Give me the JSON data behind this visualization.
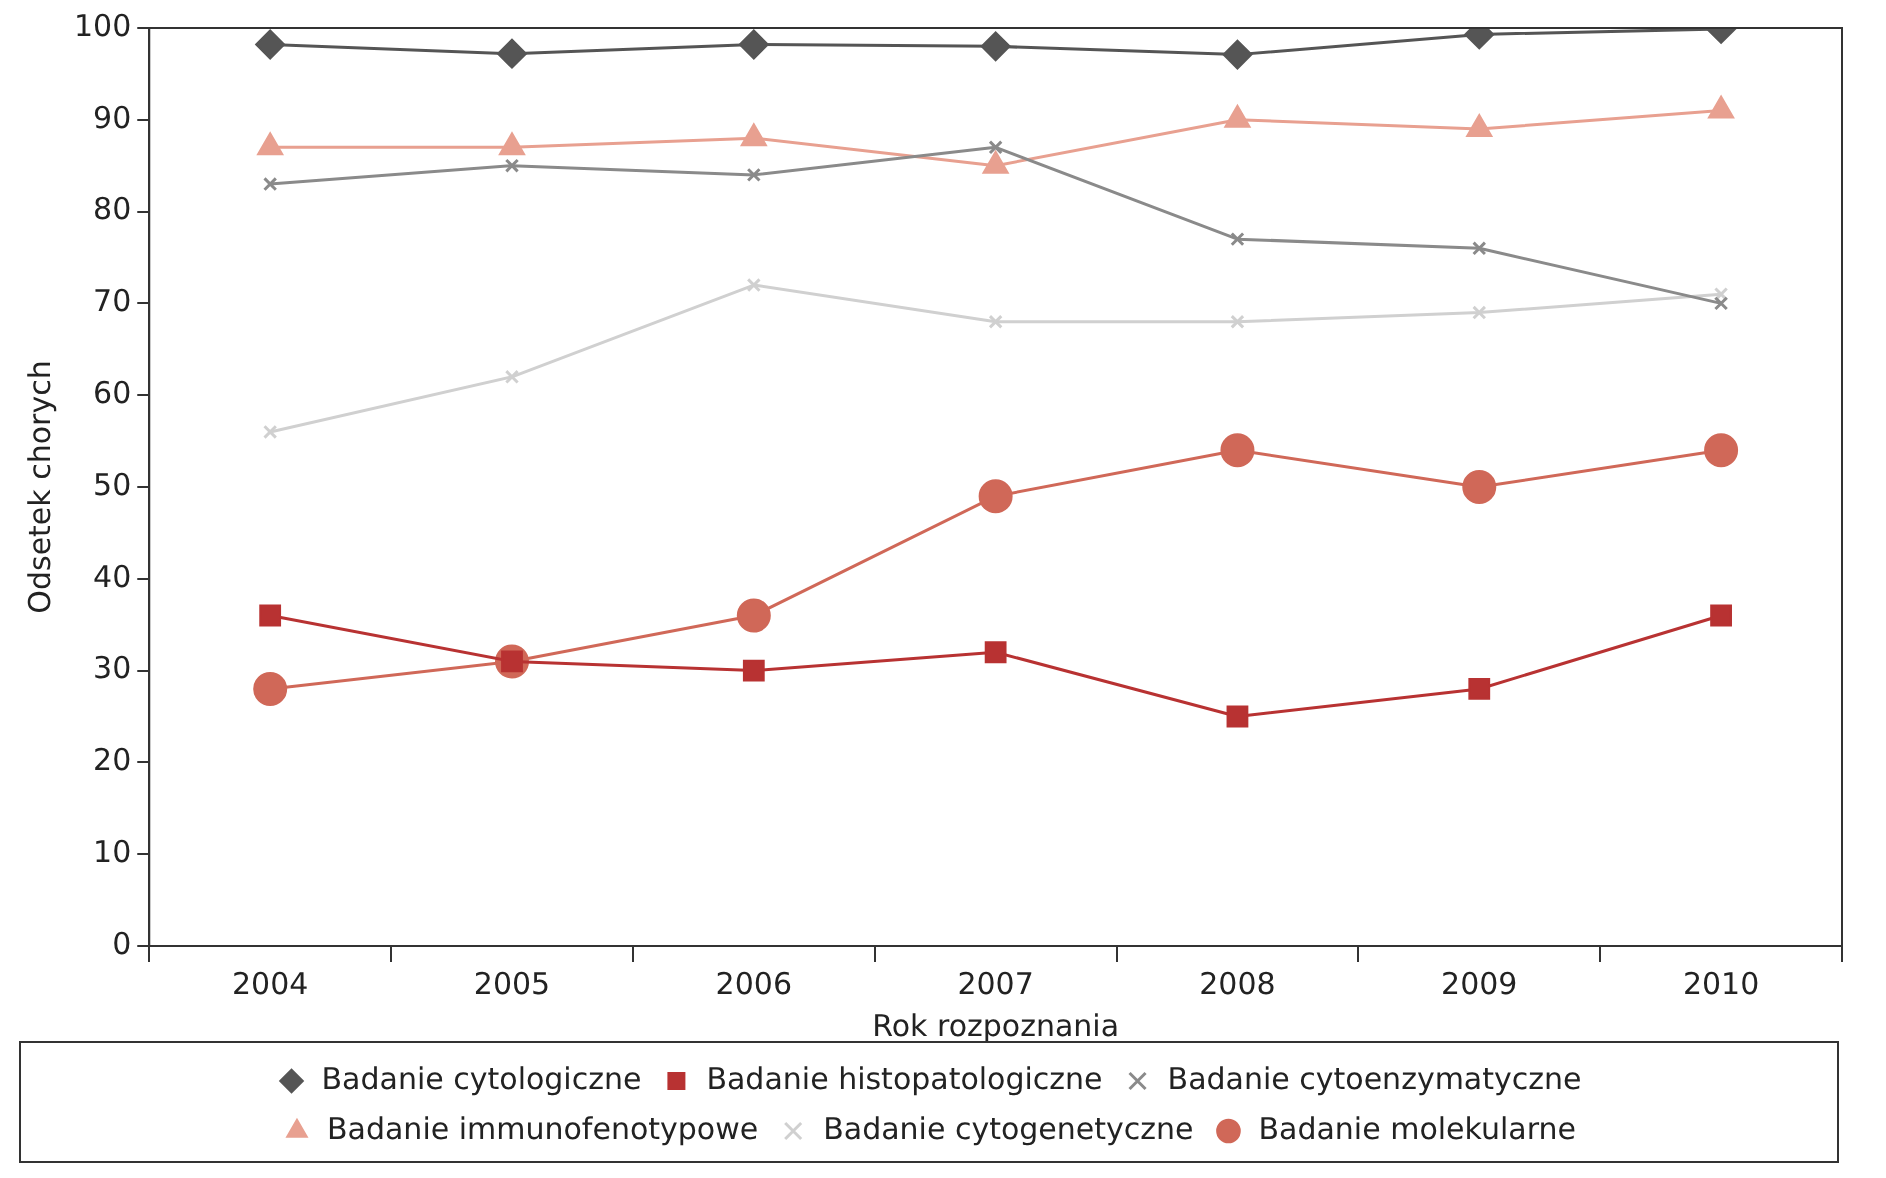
{
  "chart_data": {
    "type": "line",
    "xlabel": "Rok rozpoznania",
    "ylabel": "Odsetek chorych",
    "categories": [
      "2004",
      "2005",
      "2006",
      "2007",
      "2008",
      "2009",
      "2010"
    ],
    "series": [
      {
        "name": "Badanie cytologiczne",
        "color": "#555555",
        "marker": "diamond",
        "values": [
          98.2,
          97.2,
          98.2,
          98.0,
          97.1,
          99.3,
          99.9
        ]
      },
      {
        "name": "Badanie histopatologiczne",
        "color": "#b83232",
        "marker": "square",
        "values": [
          36,
          31,
          30,
          32,
          25,
          28,
          36
        ]
      },
      {
        "name": "Badanie cytoenzymatyczne",
        "color": "#8a8a8a",
        "marker": "cross",
        "values": [
          83,
          85,
          84,
          87,
          77,
          76,
          70
        ]
      },
      {
        "name": "Badanie immunofenotypowe",
        "color": "#e8a090",
        "marker": "triangle",
        "values": [
          87,
          87,
          88,
          85,
          90,
          89,
          91
        ]
      },
      {
        "name": "Badanie cytogenetyczne",
        "color": "#d0d0d0",
        "marker": "cross",
        "values": [
          56,
          62,
          72,
          68,
          68,
          69,
          71
        ]
      },
      {
        "name": "Badanie molekularne",
        "color": "#d06858",
        "marker": "circle",
        "values": [
          28,
          31,
          36,
          49,
          54,
          50,
          54
        ]
      }
    ],
    "ylim": [
      0,
      100
    ],
    "yticks": [
      0,
      10,
      20,
      30,
      40,
      50,
      60,
      70,
      80,
      90,
      100
    ],
    "grid": false,
    "legend": "bottom",
    "line_style": "solid"
  }
}
